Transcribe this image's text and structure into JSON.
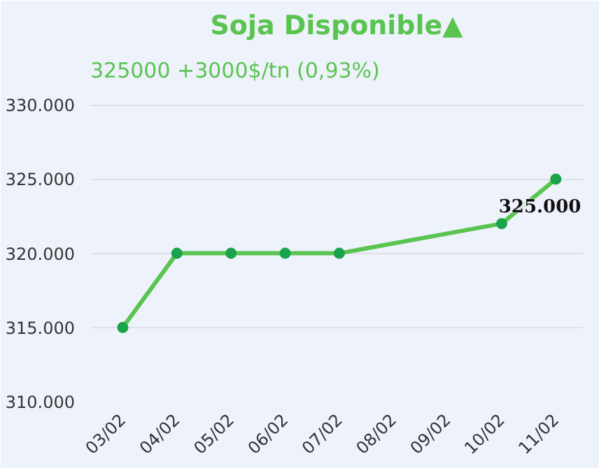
{
  "chart_data": {
    "type": "line",
    "title": "Soja Disponible▲",
    "subtitle": "325000 +3000$/tn (0,93%)",
    "categories": [
      "03/02",
      "04/02",
      "05/02",
      "06/02",
      "07/02",
      "08/02",
      "09/02",
      "10/02",
      "11/02"
    ],
    "series": [
      {
        "color": "#5ac450",
        "values": [
          315000,
          320000,
          320000,
          320000,
          320000,
          null,
          null,
          322000,
          325000
        ]
      }
    ],
    "ylim": [
      310000,
      331000
    ],
    "yticks": [
      {
        "value": 310000,
        "label": "310.000"
      },
      {
        "value": 315000,
        "label": "315.000"
      },
      {
        "value": 320000,
        "label": "320.000"
      },
      {
        "value": 325000,
        "label": "325.000"
      },
      {
        "value": 330000,
        "label": "330.000"
      }
    ],
    "annotations": [
      {
        "text": "325.000",
        "x": "11/02",
        "y": 325000
      }
    ],
    "grid": "y",
    "marker": "circle",
    "line_style": "solid"
  }
}
